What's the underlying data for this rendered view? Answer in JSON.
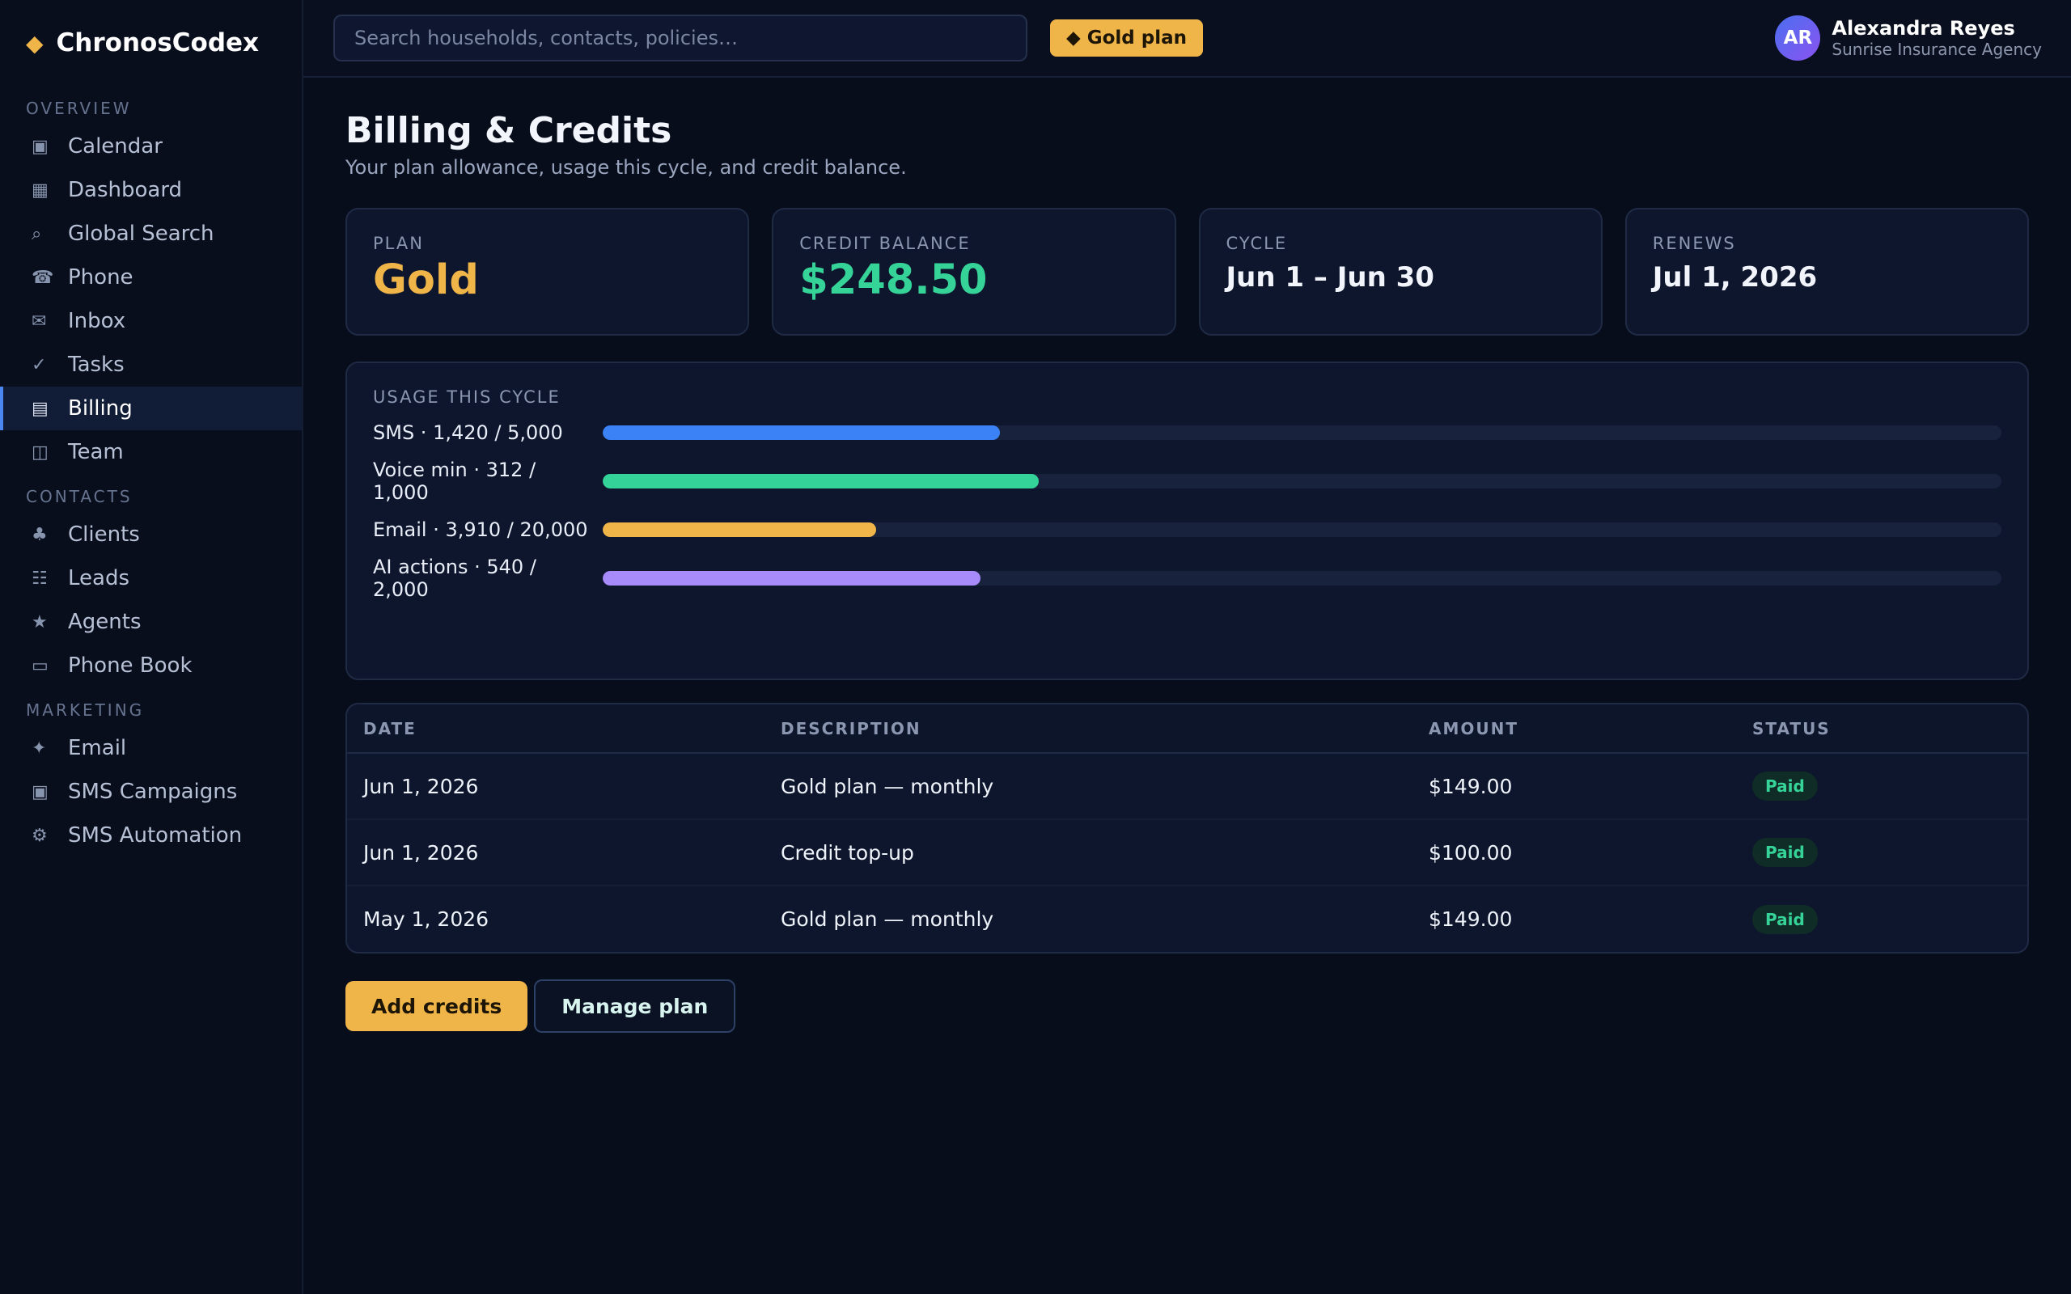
{
  "app": {
    "name": "ChronosCodex",
    "logo_icon": "◆"
  },
  "sidebar": {
    "sections": [
      {
        "label": "OVERVIEW",
        "items": [
          {
            "label": "Calendar",
            "icon": "▣",
            "icon_name": "calendar-icon"
          },
          {
            "label": "Dashboard",
            "icon": "▦",
            "icon_name": "dashboard-icon"
          },
          {
            "label": "Global Search",
            "icon": "⌕",
            "icon_name": "search-icon"
          },
          {
            "label": "Phone",
            "icon": "☎",
            "icon_name": "phone-icon"
          },
          {
            "label": "Inbox",
            "icon": "✉",
            "icon_name": "inbox-icon"
          },
          {
            "label": "Tasks",
            "icon": "✓",
            "icon_name": "check-icon"
          },
          {
            "label": "Billing",
            "icon": "▤",
            "icon_name": "billing-icon",
            "active": true
          },
          {
            "label": "Team",
            "icon": "◫",
            "icon_name": "team-icon"
          }
        ]
      },
      {
        "label": "CONTACTS",
        "items": [
          {
            "label": "Clients",
            "icon": "♣",
            "icon_name": "clients-icon"
          },
          {
            "label": "Leads",
            "icon": "☷",
            "icon_name": "leads-icon"
          },
          {
            "label": "Agents",
            "icon": "★",
            "icon_name": "agents-icon"
          },
          {
            "label": "Phone Book",
            "icon": "▭",
            "icon_name": "phone-book-icon"
          }
        ]
      },
      {
        "label": "MARKETING",
        "items": [
          {
            "label": "Email",
            "icon": "✦",
            "icon_name": "email-icon"
          },
          {
            "label": "SMS Campaigns",
            "icon": "▣",
            "icon_name": "sms-campaigns-icon"
          },
          {
            "label": "SMS Automation",
            "icon": "⚙",
            "icon_name": "gear-icon"
          }
        ]
      }
    ]
  },
  "topbar": {
    "search_placeholder": "Search households, contacts, policies…",
    "plan_badge_icon": "◆",
    "plan_badge": "Gold plan",
    "user": {
      "initials": "AR",
      "name": "Alexandra Reyes",
      "org": "Sunrise Insurance Agency"
    }
  },
  "page": {
    "title": "Billing & Credits",
    "subtitle": "Your plan allowance, usage this cycle, and credit balance."
  },
  "stats": {
    "plan": {
      "label": "PLAN",
      "value": "Gold"
    },
    "credit": {
      "label": "CREDIT BALANCE",
      "value": "$248.50"
    },
    "cycle": {
      "label": "CYCLE",
      "value": "Jun 1 – Jun 30"
    },
    "renews": {
      "label": "RENEWS",
      "value": "Jul 1, 2026"
    }
  },
  "usage": {
    "title": "USAGE THIS CYCLE",
    "items": [
      {
        "label": "SMS · 1,420 / 5,000",
        "used": 1420,
        "limit": 5000,
        "color": "#3b82f6"
      },
      {
        "label": "Voice min · 312 / 1,000",
        "used": 312,
        "limit": 1000,
        "color": "#34d399"
      },
      {
        "label": "Email · 3,910 / 20,000",
        "used": 3910,
        "limit": 20000,
        "color": "#f0b549"
      },
      {
        "label": "AI actions · 540 / 2,000",
        "used": 540,
        "limit": 2000,
        "color": "#a78bfa"
      }
    ]
  },
  "transactions": {
    "headers": {
      "date": "DATE",
      "description": "DESCRIPTION",
      "amount": "AMOUNT",
      "status": "STATUS"
    },
    "rows": [
      {
        "date": "Jun 1, 2026",
        "description": "Gold plan — monthly",
        "amount": "$149.00",
        "status": "Paid"
      },
      {
        "date": "Jun 1, 2026",
        "description": "Credit top-up",
        "amount": "$100.00",
        "status": "Paid"
      },
      {
        "date": "May 1, 2026",
        "description": "Gold plan — monthly",
        "amount": "$149.00",
        "status": "Paid"
      }
    ]
  },
  "actions": {
    "add_credits": "Add credits",
    "manage_plan": "Manage plan"
  }
}
